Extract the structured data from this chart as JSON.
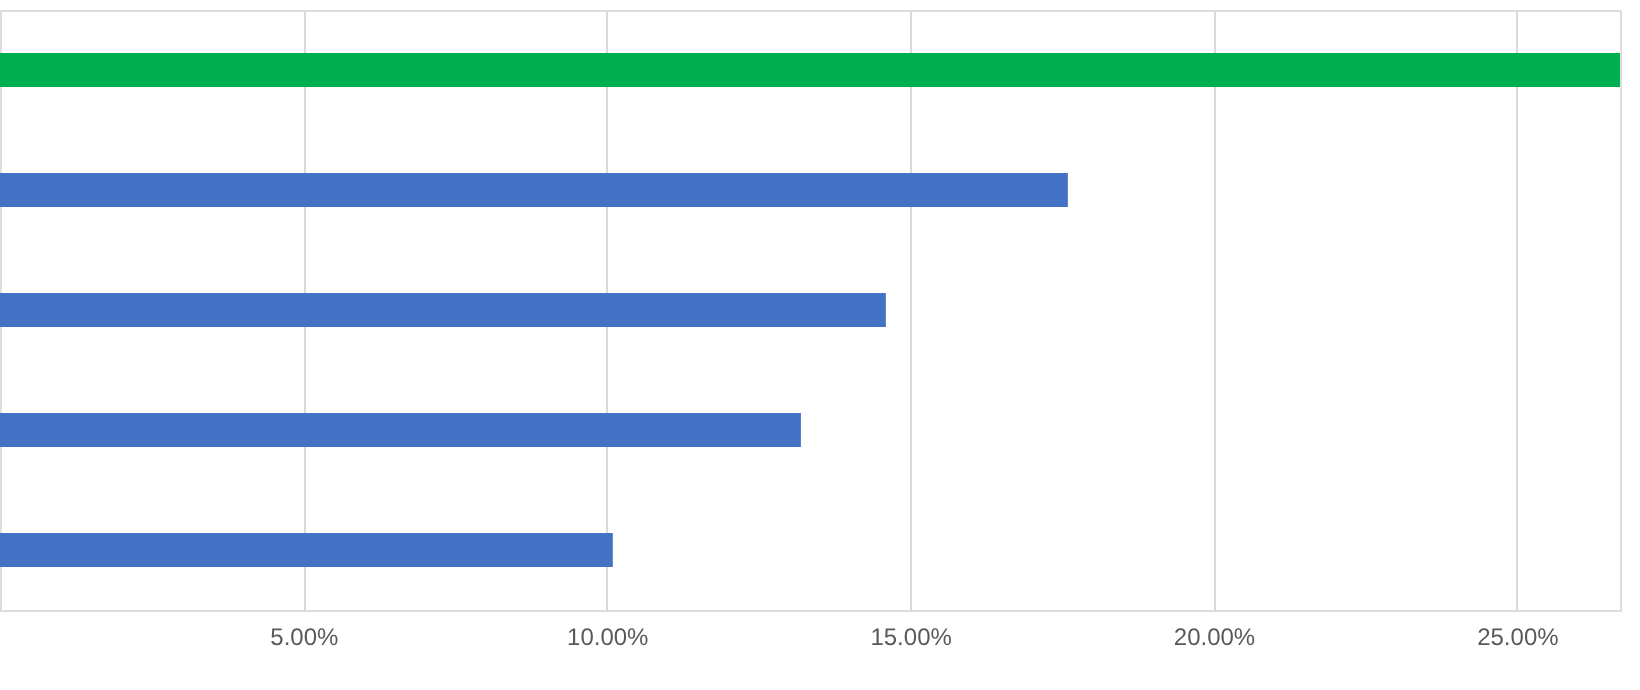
{
  "chart_data": {
    "type": "bar",
    "orientation": "horizontal",
    "categories": [
      null,
      null,
      null,
      null,
      null
    ],
    "values": [
      26.7,
      17.6,
      14.6,
      13.2,
      10.1
    ],
    "colors": [
      "#00b050",
      "#4472c4",
      "#4472c4",
      "#4472c4",
      "#4472c4"
    ],
    "xlim": [
      0,
      26.7
    ],
    "xticks": [
      {
        "value": 5,
        "label": "5.00%"
      },
      {
        "value": 10,
        "label": "10.00%"
      },
      {
        "value": 15,
        "label": "15.00%"
      },
      {
        "value": 20,
        "label": "20.00%"
      },
      {
        "value": 25,
        "label": "25.00%"
      }
    ],
    "grid": "x",
    "tick_labels": "x"
  }
}
